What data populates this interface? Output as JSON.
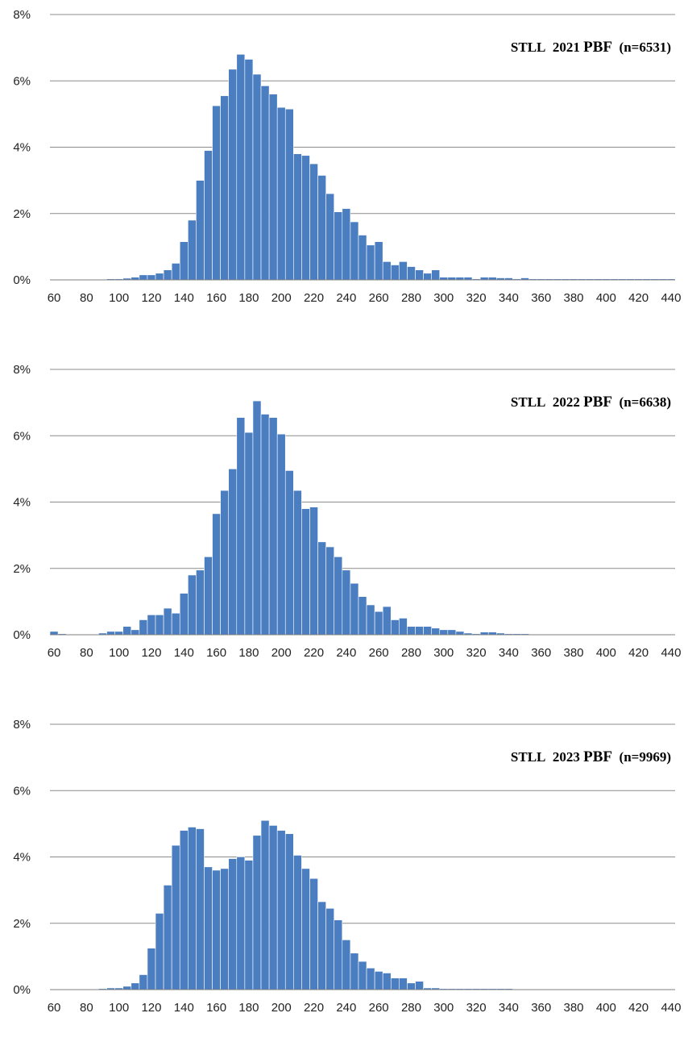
{
  "colors": {
    "bar": "#4A7EC1",
    "bar_edge": "#FFFFFF",
    "gridline": "#8C8C8C",
    "axis": "#7F7F7F",
    "text": "#222222",
    "background": "#FFFFFF"
  },
  "chart_data": [
    {
      "type": "bar",
      "title": "STLL 2021 PBF (n=6531)",
      "title_parts": {
        "prefix": "STLL",
        "year": "2021",
        "label": "PBF",
        "count": "(n=6531)"
      },
      "xlabel": "",
      "ylabel": "",
      "ylim": [
        0,
        8
      ],
      "yticks": [
        "0%",
        "2%",
        "4%",
        "6%",
        "8%"
      ],
      "ytick_values": [
        0,
        2,
        4,
        6,
        8
      ],
      "xlim": [
        60,
        440
      ],
      "xticks": [
        "60",
        "80",
        "100",
        "120",
        "140",
        "160",
        "180",
        "200",
        "220",
        "240",
        "260",
        "280",
        "300",
        "320",
        "340",
        "360",
        "380",
        "400",
        "420",
        "440"
      ],
      "bin_width": 5,
      "grid": "horizontal",
      "legend": "none",
      "x": [
        60,
        65,
        70,
        75,
        80,
        85,
        90,
        95,
        100,
        105,
        110,
        115,
        120,
        125,
        130,
        135,
        140,
        145,
        150,
        155,
        160,
        165,
        170,
        175,
        180,
        185,
        190,
        195,
        200,
        205,
        210,
        215,
        220,
        225,
        230,
        235,
        240,
        245,
        250,
        255,
        260,
        265,
        270,
        275,
        280,
        285,
        290,
        295,
        300,
        305,
        310,
        315,
        320,
        325,
        330,
        335,
        340,
        345,
        350,
        355,
        360,
        365,
        370,
        375,
        380,
        385,
        390,
        395,
        400,
        405,
        410,
        415,
        420,
        425,
        430,
        435,
        440
      ],
      "values": [
        0,
        0,
        0,
        0,
        0,
        0,
        0,
        0.03,
        0.03,
        0.05,
        0.08,
        0.15,
        0.15,
        0.2,
        0.3,
        0.5,
        1.15,
        1.8,
        3.0,
        3.9,
        5.25,
        5.55,
        6.35,
        6.8,
        6.65,
        6.2,
        5.85,
        5.6,
        5.2,
        5.15,
        3.8,
        3.75,
        3.5,
        3.15,
        2.6,
        2.05,
        2.15,
        1.75,
        1.35,
        1.05,
        1.15,
        0.55,
        0.45,
        0.55,
        0.4,
        0.3,
        0.2,
        0.3,
        0.08,
        0.08,
        0.08,
        0.08,
        0.03,
        0.08,
        0.08,
        0.06,
        0.06,
        0.03,
        0.06,
        0.03,
        0.03,
        0.03,
        0.03,
        0.03,
        0.03,
        0.03,
        0.03,
        0.03,
        0.03,
        0.03,
        0.03,
        0.03,
        0.03,
        0.03,
        0.03,
        0.03,
        0.03
      ]
    },
    {
      "type": "bar",
      "title": "STLL 2022 PBF (n=6638)",
      "title_parts": {
        "prefix": "STLL",
        "year": "2022",
        "label": "PBF",
        "count": "(n=6638)"
      },
      "xlabel": "",
      "ylabel": "",
      "ylim": [
        0,
        8
      ],
      "yticks": [
        "0%",
        "2%",
        "4%",
        "6%",
        "8%"
      ],
      "ytick_values": [
        0,
        2,
        4,
        6,
        8
      ],
      "xlim": [
        60,
        440
      ],
      "xticks": [
        "60",
        "80",
        "100",
        "120",
        "140",
        "160",
        "180",
        "200",
        "220",
        "240",
        "260",
        "280",
        "300",
        "320",
        "340",
        "360",
        "380",
        "400",
        "420",
        "440"
      ],
      "bin_width": 5,
      "grid": "horizontal",
      "legend": "none",
      "x": [
        60,
        65,
        70,
        75,
        80,
        85,
        90,
        95,
        100,
        105,
        110,
        115,
        120,
        125,
        130,
        135,
        140,
        145,
        150,
        155,
        160,
        165,
        170,
        175,
        180,
        185,
        190,
        195,
        200,
        205,
        210,
        215,
        220,
        225,
        230,
        235,
        240,
        245,
        250,
        255,
        260,
        265,
        270,
        275,
        280,
        285,
        290,
        295,
        300,
        305,
        310,
        315,
        320,
        325,
        330,
        335,
        340,
        345,
        350,
        355,
        360,
        365,
        370,
        375,
        380,
        385,
        390,
        395,
        400,
        405,
        410,
        415,
        420,
        425,
        430,
        435,
        440
      ],
      "values": [
        0.1,
        0.03,
        0,
        0,
        0,
        0,
        0.05,
        0.1,
        0.1,
        0.25,
        0.15,
        0.45,
        0.6,
        0.6,
        0.8,
        0.65,
        1.25,
        1.8,
        1.95,
        2.35,
        3.65,
        4.35,
        5.0,
        6.55,
        6.1,
        7.05,
        6.65,
        6.55,
        6.05,
        4.95,
        4.35,
        3.8,
        3.85,
        2.8,
        2.65,
        2.35,
        1.95,
        1.55,
        1.15,
        0.9,
        0.7,
        0.85,
        0.45,
        0.5,
        0.25,
        0.25,
        0.25,
        0.2,
        0.15,
        0.15,
        0.1,
        0.05,
        0.03,
        0.08,
        0.08,
        0.05,
        0.03,
        0.03,
        0.03,
        0,
        0,
        0,
        0,
        0,
        0,
        0,
        0,
        0,
        0,
        0,
        0,
        0,
        0,
        0,
        0,
        0,
        0
      ]
    },
    {
      "type": "bar",
      "title": "STLL 2023 PBF (n=9969)",
      "title_parts": {
        "prefix": "STLL",
        "year": "2023",
        "label": "PBF",
        "count": "(n=9969)"
      },
      "xlabel": "",
      "ylabel": "",
      "ylim": [
        0,
        8
      ],
      "yticks": [
        "0%",
        "2%",
        "4%",
        "6%",
        "8%"
      ],
      "ytick_values": [
        0,
        2,
        4,
        6,
        8
      ],
      "xlim": [
        60,
        440
      ],
      "xticks": [
        "60",
        "80",
        "100",
        "120",
        "140",
        "160",
        "180",
        "200",
        "220",
        "240",
        "260",
        "280",
        "300",
        "320",
        "340",
        "360",
        "380",
        "400",
        "420",
        "440"
      ],
      "bin_width": 5,
      "grid": "horizontal",
      "legend": "none",
      "x": [
        60,
        65,
        70,
        75,
        80,
        85,
        90,
        95,
        100,
        105,
        110,
        115,
        120,
        125,
        130,
        135,
        140,
        145,
        150,
        155,
        160,
        165,
        170,
        175,
        180,
        185,
        190,
        195,
        200,
        205,
        210,
        215,
        220,
        225,
        230,
        235,
        240,
        245,
        250,
        255,
        260,
        265,
        270,
        275,
        280,
        285,
        290,
        295,
        300,
        305,
        310,
        315,
        320,
        325,
        330,
        335,
        340,
        345,
        350,
        355,
        360,
        365,
        370,
        375,
        380,
        385,
        390,
        395,
        400,
        405,
        410,
        415,
        420,
        425,
        430,
        435,
        440
      ],
      "values": [
        0,
        0,
        0,
        0,
        0,
        0,
        0.03,
        0.05,
        0.05,
        0.1,
        0.2,
        0.45,
        1.25,
        2.3,
        3.15,
        4.35,
        4.8,
        4.9,
        4.85,
        3.7,
        3.6,
        3.65,
        3.95,
        4.0,
        3.9,
        4.65,
        5.1,
        4.95,
        4.8,
        4.7,
        4.05,
        3.65,
        3.35,
        2.65,
        2.45,
        2.1,
        1.5,
        1.1,
        0.85,
        0.65,
        0.55,
        0.5,
        0.35,
        0.35,
        0.2,
        0.25,
        0.05,
        0.05,
        0.03,
        0.03,
        0.03,
        0.03,
        0.03,
        0.03,
        0.03,
        0.03,
        0.03,
        0,
        0,
        0,
        0,
        0,
        0,
        0,
        0,
        0,
        0,
        0,
        0,
        0,
        0,
        0,
        0,
        0,
        0,
        0,
        0
      ]
    }
  ]
}
